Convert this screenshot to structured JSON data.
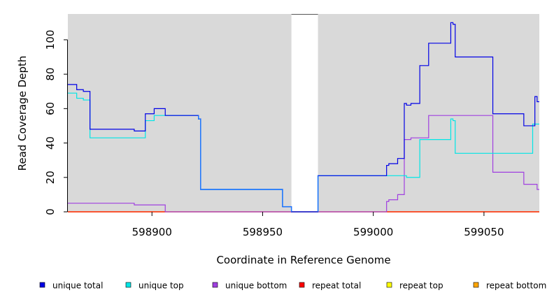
{
  "chart_data": {
    "type": "line",
    "title": "",
    "xlabel": "Coordinate in Reference Genome",
    "ylabel": "Read Coverage Depth",
    "xlim": [
      598862,
      599075
    ],
    "ylim": [
      0,
      115
    ],
    "xticks": [
      598900,
      598950,
      599000,
      599050
    ],
    "xtick_labels": [
      "598900",
      "598950",
      "599000",
      "599050"
    ],
    "yticks": [
      0,
      20,
      40,
      60,
      80,
      100
    ],
    "ytick_labels": [
      "0",
      "20",
      "40",
      "60",
      "80",
      "100"
    ],
    "gap": [
      598963,
      598975
    ],
    "grid": false,
    "legend_position": "bottom",
    "colors": {
      "background": "#d9d9d9",
      "gap": "#ffffff",
      "overlap": "#1e78ff"
    },
    "series": [
      {
        "name": "unique total",
        "color": "#0000e6",
        "points": [
          [
            598862,
            74
          ],
          [
            598866,
            74
          ],
          [
            598866,
            71
          ],
          [
            598869,
            71
          ],
          [
            598869,
            70
          ],
          [
            598872,
            70
          ],
          [
            598872,
            48
          ],
          [
            598892,
            48
          ],
          [
            598892,
            47
          ],
          [
            598897,
            47
          ],
          [
            598897,
            57
          ],
          [
            598901,
            57
          ],
          [
            598901,
            60
          ],
          [
            598906,
            60
          ],
          [
            598906,
            56
          ],
          [
            598921,
            56
          ],
          [
            598921,
            54
          ],
          [
            598922,
            54
          ],
          [
            598922,
            13
          ],
          [
            598959,
            13
          ],
          [
            598959,
            3
          ],
          [
            598963,
            3
          ],
          [
            598963,
            0
          ],
          [
            598975,
            0
          ],
          [
            598975,
            21
          ],
          [
            599006,
            21
          ],
          [
            599006,
            27
          ],
          [
            599007,
            27
          ],
          [
            599007,
            28
          ],
          [
            599011,
            28
          ],
          [
            599011,
            31
          ],
          [
            599014,
            31
          ],
          [
            599014,
            63
          ],
          [
            599015,
            63
          ],
          [
            599015,
            62
          ],
          [
            599017,
            62
          ],
          [
            599017,
            63
          ],
          [
            599021,
            63
          ],
          [
            599021,
            85
          ],
          [
            599025,
            85
          ],
          [
            599025,
            98
          ],
          [
            599035,
            98
          ],
          [
            599035,
            110
          ],
          [
            599036,
            110
          ],
          [
            599036,
            109
          ],
          [
            599037,
            109
          ],
          [
            599037,
            90
          ],
          [
            599054,
            90
          ],
          [
            599054,
            57
          ],
          [
            599068,
            57
          ],
          [
            599068,
            50
          ],
          [
            599073,
            50
          ],
          [
            599073,
            67
          ],
          [
            599074,
            67
          ],
          [
            599074,
            64
          ],
          [
            599075,
            64
          ]
        ]
      },
      {
        "name": "unique top",
        "color": "#00e6e6",
        "points": [
          [
            598862,
            69
          ],
          [
            598866,
            69
          ],
          [
            598866,
            66
          ],
          [
            598869,
            66
          ],
          [
            598869,
            65
          ],
          [
            598872,
            65
          ],
          [
            598872,
            43
          ],
          [
            598897,
            43
          ],
          [
            598897,
            53
          ],
          [
            598901,
            53
          ],
          [
            598901,
            56
          ],
          [
            598921,
            56
          ],
          [
            598921,
            54
          ],
          [
            598922,
            54
          ],
          [
            598922,
            13
          ],
          [
            598959,
            13
          ],
          [
            598959,
            3
          ],
          [
            598963,
            3
          ],
          [
            598963,
            0
          ],
          [
            598975,
            0
          ],
          [
            598975,
            21
          ],
          [
            599015,
            21
          ],
          [
            599015,
            20
          ],
          [
            599021,
            20
          ],
          [
            599021,
            42
          ],
          [
            599035,
            42
          ],
          [
            599035,
            54
          ],
          [
            599036,
            54
          ],
          [
            599036,
            53
          ],
          [
            599037,
            53
          ],
          [
            599037,
            34
          ],
          [
            599072,
            34
          ],
          [
            599072,
            51
          ],
          [
            599075,
            51
          ]
        ]
      },
      {
        "name": "unique bottom",
        "color": "#a040e0",
        "points": [
          [
            598862,
            5
          ],
          [
            598892,
            5
          ],
          [
            598892,
            4
          ],
          [
            598906,
            4
          ],
          [
            598906,
            0
          ],
          [
            599006,
            0
          ],
          [
            599006,
            6
          ],
          [
            599007,
            6
          ],
          [
            599007,
            7
          ],
          [
            599011,
            7
          ],
          [
            599011,
            10
          ],
          [
            599014,
            10
          ],
          [
            599014,
            42
          ],
          [
            599017,
            42
          ],
          [
            599017,
            43
          ],
          [
            599025,
            43
          ],
          [
            599025,
            56
          ],
          [
            599054,
            56
          ],
          [
            599054,
            23
          ],
          [
            599068,
            23
          ],
          [
            599068,
            16
          ],
          [
            599074,
            16
          ],
          [
            599074,
            13
          ],
          [
            599075,
            13
          ]
        ]
      },
      {
        "name": "repeat total",
        "color": "#ff0000",
        "points": [
          [
            598862,
            0
          ],
          [
            599075,
            0
          ]
        ]
      },
      {
        "name": "repeat top",
        "color": "#ffff00",
        "points": [
          [
            598862,
            0
          ],
          [
            599075,
            0
          ]
        ]
      },
      {
        "name": "repeat bottom",
        "color": "#ffa500",
        "points": [
          [
            598862,
            0
          ],
          [
            599075,
            0
          ]
        ]
      }
    ]
  }
}
